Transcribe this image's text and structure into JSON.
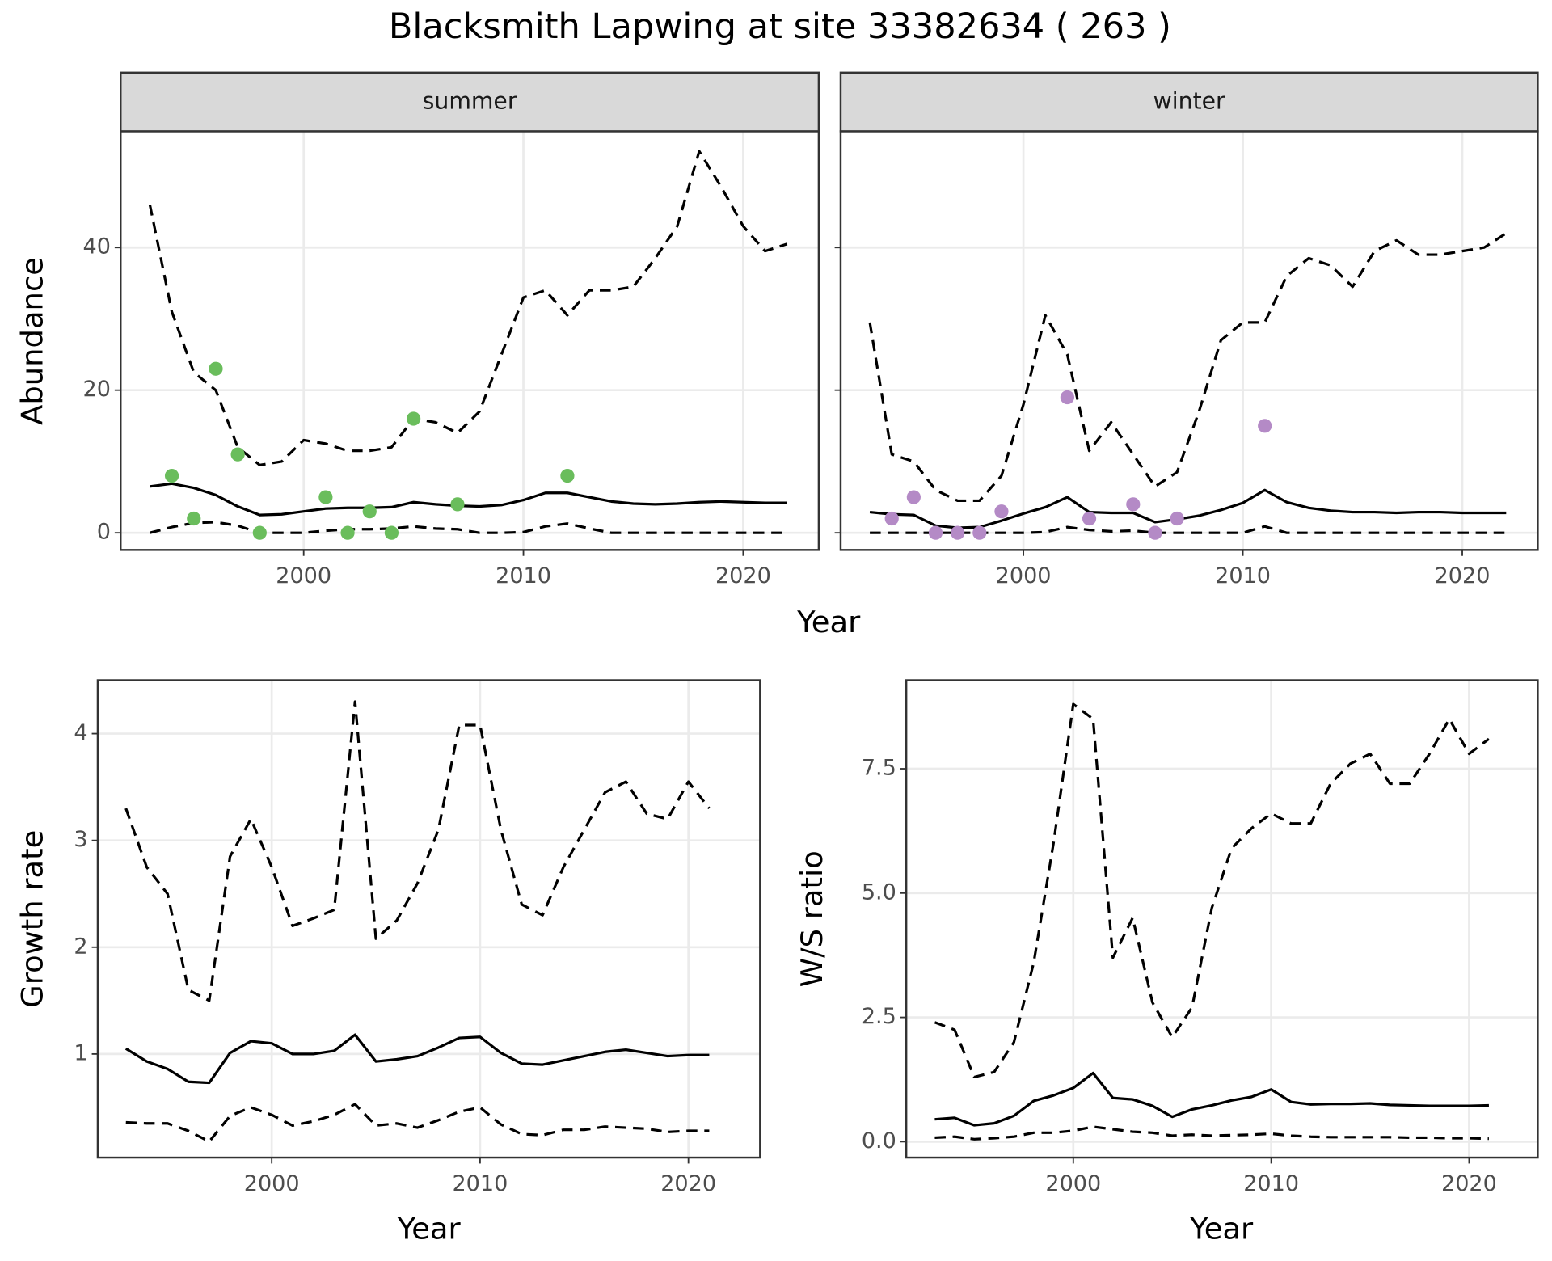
{
  "title": "Blacksmith Lapwing at site 33382634 ( 263 )",
  "chart_data": [
    {
      "type": "line",
      "panel": "summer",
      "xlabel": "Year",
      "ylabel": "Abundance",
      "xlim": [
        1991.67,
        2023.44
      ],
      "xticks": [
        2000,
        2010,
        2020
      ],
      "ylim": [
        -2.4,
        56.3
      ],
      "yticks": [
        0,
        20,
        40
      ],
      "grid": true,
      "ytick_labels": true,
      "x": [
        1993,
        1994,
        1995,
        1996,
        1997,
        1998,
        1999,
        2000,
        2001,
        2002,
        2003,
        2004,
        2005,
        2006,
        2007,
        2008,
        2009,
        2010,
        2011,
        2012,
        2013,
        2014,
        2015,
        2016,
        2017,
        2018,
        2019,
        2020,
        2021,
        2022
      ],
      "series": [
        {
          "color": "#000000",
          "dash": true,
          "values": [
            46,
            31,
            22.5,
            20,
            12,
            9.5,
            10,
            13,
            12.5,
            11.5,
            11.5,
            12,
            16,
            15.5,
            14,
            17,
            25,
            33,
            34,
            30.5,
            34,
            34,
            34.5,
            38.5,
            43,
            53.5,
            48.5,
            43,
            39.5,
            40.5
          ]
        },
        {
          "color": "#000000",
          "dash": false,
          "values": [
            6.5,
            6.9,
            6.3,
            5.3,
            3.7,
            2.5,
            2.6,
            3.0,
            3.4,
            3.5,
            3.5,
            3.6,
            4.3,
            4.0,
            3.8,
            3.7,
            3.9,
            4.6,
            5.6,
            5.6,
            5.0,
            4.4,
            4.1,
            4.0,
            4.1,
            4.3,
            4.4,
            4.3,
            4.2,
            4.2
          ]
        },
        {
          "color": "#000000",
          "dash": true,
          "values": [
            0,
            0.8,
            1.4,
            1.5,
            1.0,
            0,
            0,
            0,
            0.3,
            0.5,
            0.5,
            0.6,
            0.9,
            0.6,
            0.5,
            0,
            0,
            0.1,
            0.9,
            1.3,
            0.6,
            0,
            0,
            0,
            0,
            0,
            0,
            0,
            0,
            0
          ]
        }
      ],
      "points": {
        "color": "#6abd5c",
        "x": [
          1994,
          1995,
          1996,
          1997,
          1998,
          2001,
          2002,
          2003,
          2004,
          2005,
          2007,
          2012
        ],
        "values": [
          8,
          2,
          23,
          11,
          0,
          5,
          0,
          3,
          0,
          16,
          4,
          8
        ]
      }
    },
    {
      "type": "line",
      "panel": "winter",
      "xlim": [
        1991.67,
        2023.44
      ],
      "xticks": [
        2000,
        2010,
        2020
      ],
      "ylim": [
        -2.4,
        56.3
      ],
      "yticks": [
        0,
        20,
        40
      ],
      "grid": true,
      "ytick_labels": false,
      "x": [
        1993,
        1994,
        1995,
        1996,
        1997,
        1998,
        1999,
        2000,
        2001,
        2002,
        2003,
        2004,
        2005,
        2006,
        2007,
        2008,
        2009,
        2010,
        2011,
        2012,
        2013,
        2014,
        2015,
        2016,
        2017,
        2018,
        2019,
        2020,
        2021,
        2022
      ],
      "series": [
        {
          "color": "#000000",
          "dash": true,
          "values": [
            29.5,
            11,
            10,
            6,
            4.5,
            4.5,
            8,
            18,
            30.5,
            25,
            11.5,
            15.5,
            11,
            6.5,
            8.5,
            17,
            27,
            29.5,
            29.5,
            36,
            38.5,
            37.5,
            34.5,
            39.5,
            41,
            39,
            39,
            39.5,
            40,
            42
          ]
        },
        {
          "color": "#000000",
          "dash": false,
          "values": [
            2.9,
            2.6,
            2.5,
            1.0,
            0.7,
            0.8,
            1.7,
            2.7,
            3.6,
            5.0,
            2.9,
            2.8,
            2.8,
            1.5,
            1.9,
            2.4,
            3.2,
            4.2,
            6.0,
            4.3,
            3.5,
            3.1,
            2.9,
            2.9,
            2.8,
            2.9,
            2.9,
            2.8,
            2.8,
            2.8
          ]
        },
        {
          "color": "#000000",
          "dash": true,
          "values": [
            0,
            0,
            0,
            0,
            0,
            0,
            0,
            0,
            0.1,
            0.8,
            0.4,
            0.2,
            0.3,
            0,
            0,
            0,
            0,
            0,
            0.9,
            0,
            0,
            0,
            0,
            0,
            0,
            0,
            0,
            0,
            0,
            0
          ]
        }
      ],
      "points": {
        "color": "#b48ac6",
        "x": [
          1994,
          1995,
          1996,
          1997,
          1998,
          1999,
          2002,
          2003,
          2005,
          2006,
          2007,
          2011
        ],
        "values": [
          2,
          5,
          0,
          0,
          0,
          3,
          19,
          2,
          4,
          0,
          2,
          15
        ]
      }
    },
    {
      "type": "line",
      "xlabel": "Year",
      "ylabel": "Growth rate",
      "xlim": [
        1991.65,
        2023.44
      ],
      "xticks": [
        2000,
        2010,
        2020
      ],
      "ylim": [
        0.03,
        4.5
      ],
      "yticks": [
        1,
        2,
        3,
        4
      ],
      "grid": true,
      "ytick_labels": true,
      "x": [
        1993,
        1994,
        1995,
        1996,
        1997,
        1998,
        1999,
        2000,
        2001,
        2002,
        2003,
        2004,
        2005,
        2006,
        2007,
        2008,
        2009,
        2010,
        2011,
        2012,
        2013,
        2014,
        2015,
        2016,
        2017,
        2018,
        2019,
        2020,
        2021
      ],
      "series": [
        {
          "color": "#000000",
          "dash": true,
          "values": [
            3.3,
            2.75,
            2.5,
            1.6,
            1.5,
            2.85,
            3.2,
            2.75,
            2.2,
            2.27,
            2.35,
            4.3,
            2.08,
            2.25,
            2.6,
            3.1,
            4.08,
            4.08,
            3.1,
            2.4,
            2.3,
            2.75,
            3.1,
            3.45,
            3.55,
            3.25,
            3.2,
            3.55,
            3.3
          ]
        },
        {
          "color": "#000000",
          "dash": false,
          "values": [
            1.05,
            0.93,
            0.86,
            0.74,
            0.73,
            1.01,
            1.12,
            1.1,
            1.0,
            1.0,
            1.03,
            1.18,
            0.93,
            0.95,
            0.98,
            1.06,
            1.15,
            1.16,
            1.01,
            0.91,
            0.9,
            0.94,
            0.98,
            1.02,
            1.04,
            1.01,
            0.98,
            0.99,
            0.99
          ]
        },
        {
          "color": "#000000",
          "dash": true,
          "values": [
            0.36,
            0.35,
            0.35,
            0.28,
            0.18,
            0.42,
            0.5,
            0.43,
            0.33,
            0.37,
            0.43,
            0.53,
            0.33,
            0.35,
            0.31,
            0.38,
            0.46,
            0.5,
            0.34,
            0.25,
            0.24,
            0.29,
            0.29,
            0.32,
            0.31,
            0.3,
            0.27,
            0.28,
            0.28
          ]
        }
      ]
    },
    {
      "type": "line",
      "xlabel": "Year",
      "ylabel": "W/S ratio",
      "xlim": [
        1991.56,
        2023.47
      ],
      "xticks": [
        2000,
        2010,
        2020
      ],
      "ylim": [
        -0.32,
        9.28
      ],
      "yticks": [
        {
          "value": 0,
          "label": "0.0"
        },
        2.5,
        {
          "value": 5,
          "label": "5.0"
        },
        7.5
      ],
      "grid": true,
      "ytick_labels": true,
      "x": [
        1993,
        1994,
        1995,
        1996,
        1997,
        1998,
        1999,
        2000,
        2001,
        2002,
        2003,
        2004,
        2005,
        2006,
        2007,
        2008,
        2009,
        2010,
        2011,
        2012,
        2013,
        2014,
        2015,
        2016,
        2017,
        2018,
        2019,
        2020,
        2021
      ],
      "series": [
        {
          "color": "#000000",
          "dash": true,
          "values": [
            2.4,
            2.25,
            1.3,
            1.4,
            2.0,
            3.6,
            6.0,
            8.8,
            8.5,
            3.7,
            4.5,
            2.8,
            2.1,
            2.7,
            4.7,
            5.9,
            6.3,
            6.6,
            6.4,
            6.4,
            7.2,
            7.6,
            7.8,
            7.2,
            7.2,
            7.8,
            8.5,
            7.8,
            8.1
          ]
        },
        {
          "color": "#000000",
          "dash": false,
          "values": [
            0.45,
            0.48,
            0.33,
            0.37,
            0.52,
            0.82,
            0.93,
            1.08,
            1.38,
            0.88,
            0.85,
            0.72,
            0.5,
            0.65,
            0.73,
            0.83,
            0.9,
            1.05,
            0.8,
            0.75,
            0.76,
            0.76,
            0.77,
            0.74,
            0.73,
            0.72,
            0.72,
            0.72,
            0.73
          ]
        },
        {
          "color": "#000000",
          "dash": true,
          "values": [
            0.08,
            0.1,
            0.05,
            0.07,
            0.1,
            0.18,
            0.18,
            0.22,
            0.3,
            0.25,
            0.2,
            0.18,
            0.12,
            0.14,
            0.12,
            0.13,
            0.14,
            0.16,
            0.12,
            0.1,
            0.09,
            0.09,
            0.09,
            0.09,
            0.08,
            0.08,
            0.07,
            0.07,
            0.06
          ]
        }
      ]
    }
  ]
}
